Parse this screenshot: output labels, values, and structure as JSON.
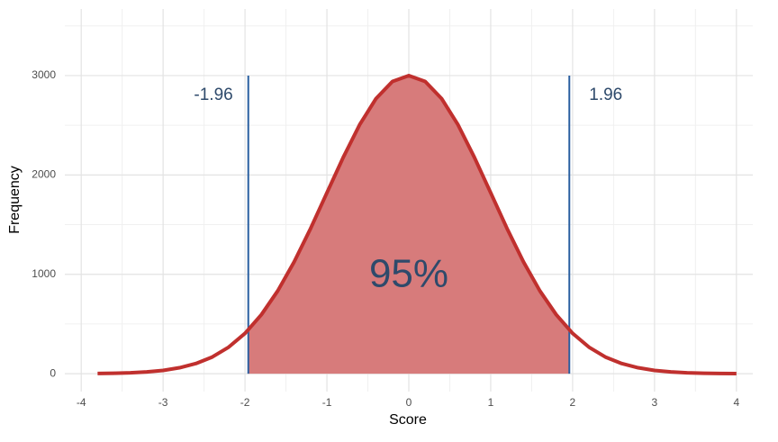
{
  "chart_data": {
    "type": "area_line",
    "x_label": "Score",
    "y_label": "Frequency",
    "x": [
      -3.8,
      -3.6,
      -3.4,
      -3.2,
      -3.0,
      -2.8,
      -2.6,
      -2.4,
      -2.2,
      -2.0,
      -1.8,
      -1.6,
      -1.4,
      -1.2,
      -1.0,
      -0.8,
      -0.6,
      -0.4,
      -0.2,
      0,
      0.2,
      0.4,
      0.6,
      0.8,
      1.0,
      1.2,
      1.4,
      1.6,
      1.8,
      2.0,
      2.2,
      2.4,
      2.6,
      2.8,
      3.0,
      3.2,
      3.4,
      3.6,
      3.8,
      4.0
    ],
    "values": [
      2,
      5,
      9,
      18,
      33,
      60,
      102,
      168,
      267,
      406,
      594,
      834,
      1126,
      1460,
      1820,
      2178,
      2506,
      2769,
      2941,
      3000,
      2941,
      2769,
      2506,
      2178,
      1820,
      1460,
      1126,
      834,
      594,
      406,
      267,
      168,
      102,
      60,
      33,
      18,
      9,
      5,
      2,
      1
    ],
    "color": "#c0302e",
    "fill_color": "#d77b7b",
    "vlines": [
      {
        "x": -1.96,
        "ymax": 3000
      },
      {
        "x": 1.96,
        "ymax": 3000
      }
    ],
    "vline_color": "#2a5fa0",
    "annotation": "95%",
    "xlim": [
      -4.2,
      4.2
    ],
    "ylim": [
      -180,
      3670
    ],
    "xticks": [
      -4,
      -3,
      -2,
      -1,
      0,
      1,
      2,
      3,
      4
    ],
    "yticks": [
      0,
      1000,
      2000,
      3000
    ],
    "xminor": [
      -3.5,
      -2.5,
      -1.5,
      -0.5,
      0.5,
      1.5,
      2.5,
      3.5
    ],
    "yminor": [
      500,
      1500,
      2500,
      3500
    ],
    "grid": true
  }
}
